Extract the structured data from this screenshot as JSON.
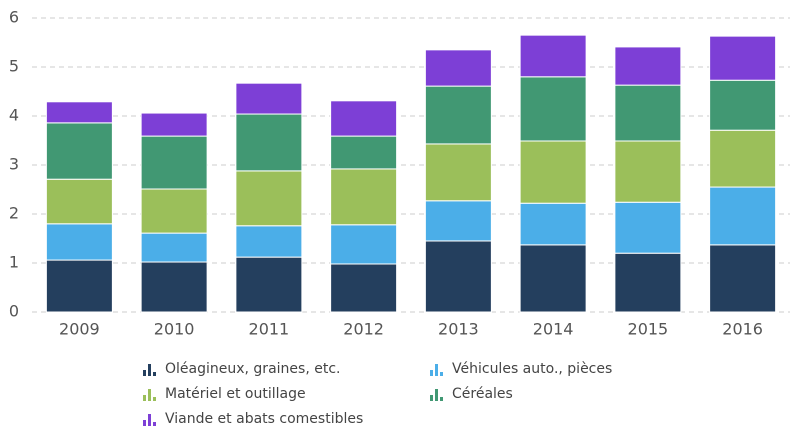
{
  "chart_data": {
    "type": "stacked_bar",
    "categories": [
      "2009",
      "2010",
      "2011",
      "2012",
      "2013",
      "2014",
      "2015",
      "2016"
    ],
    "series": [
      {
        "name": "Oléagineux, graines, etc.",
        "color": "#243f5e",
        "values": [
          1.06,
          1.02,
          1.12,
          0.98,
          1.45,
          1.37,
          1.2,
          1.37
        ]
      },
      {
        "name": "Véhicules auto., pièces",
        "color": "#4baee8",
        "values": [
          0.74,
          0.59,
          0.64,
          0.8,
          0.82,
          0.85,
          1.04,
          1.18
        ]
      },
      {
        "name": "Matériel et outillage",
        "color": "#9bbf5a",
        "values": [
          0.91,
          0.9,
          1.12,
          1.14,
          1.16,
          1.27,
          1.25,
          1.16
        ]
      },
      {
        "name": "Céréales",
        "color": "#419873",
        "values": [
          1.15,
          1.08,
          1.16,
          0.67,
          1.18,
          1.31,
          1.14,
          1.02
        ]
      },
      {
        "name": "Viande et abats comestibles",
        "color": "#7d3fd6",
        "values": [
          0.43,
          0.47,
          0.63,
          0.72,
          0.74,
          0.85,
          0.78,
          0.9
        ]
      }
    ],
    "ylim": [
      0,
      6
    ],
    "yticks": [
      0,
      1,
      2,
      3,
      4,
      5,
      6
    ],
    "grid": true
  }
}
